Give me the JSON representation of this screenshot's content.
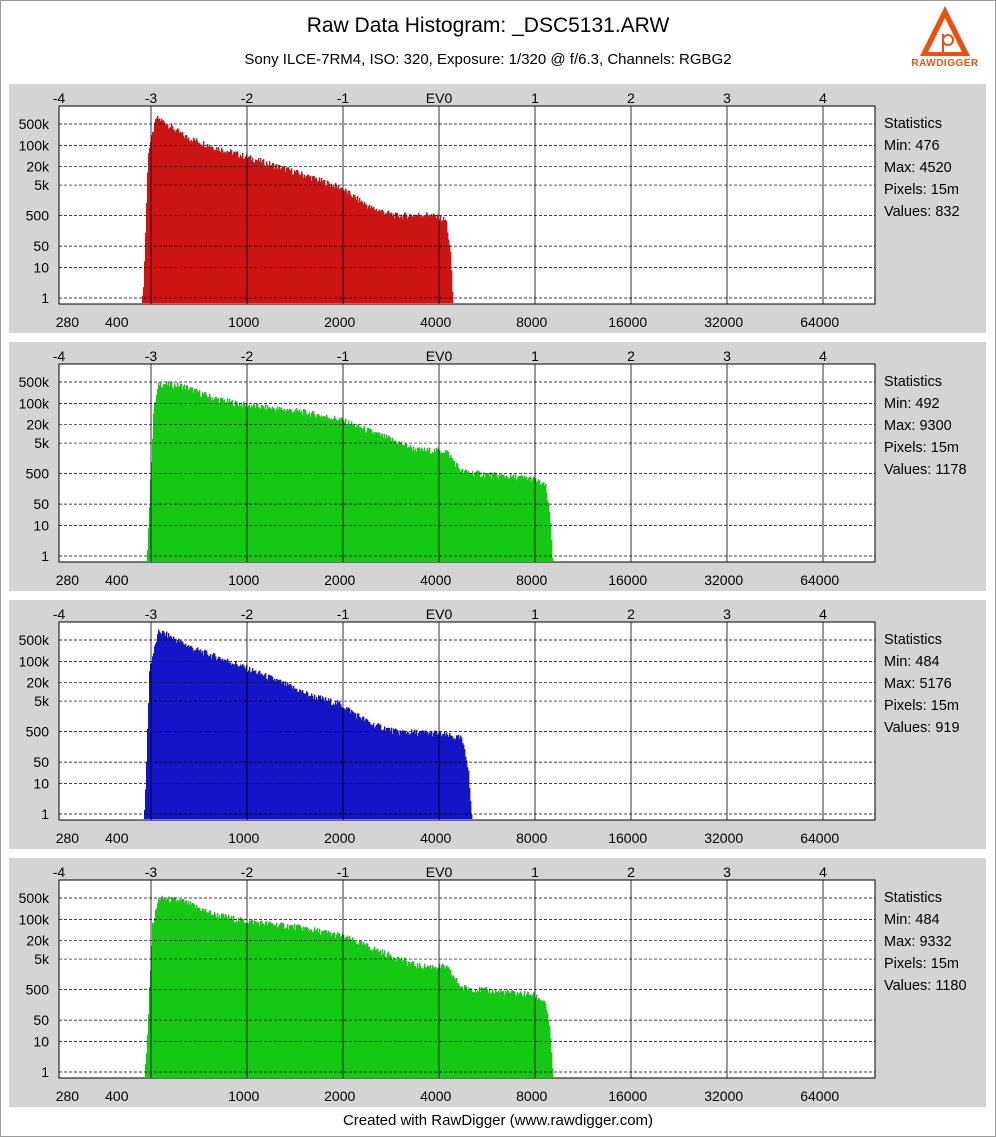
{
  "header": {
    "title": "Raw Data Histogram: _DSC5131.ARW",
    "subtitle": "Sony ILCE-7RM4, ISO: 320, Exposure: 1/320 @ f/6.3, Channels: RGBG2"
  },
  "logo": {
    "text": "RAWDIGGER",
    "icon": "rawdigger-logo-icon"
  },
  "footer": {
    "text": "Created with RawDigger (www.rawdigger.com)"
  },
  "stats_labels": {
    "heading": "Statistics",
    "min": "Min: ",
    "max": "Max: ",
    "pixels": "Pixels: ",
    "values": "Values: "
  },
  "colors": {
    "panel_bg": "#d4d4d4",
    "grid": "#000000"
  },
  "chart_data": [
    {
      "type": "bar",
      "channel": "R",
      "color": "#cc1414",
      "x_ticks_bottom": [
        "280",
        "400",
        "1000",
        "2000",
        "4000",
        "8000",
        "16000",
        "32000",
        "64000"
      ],
      "x_ticks_top": [
        "-4",
        "-3",
        "-2",
        "-1",
        "EV0",
        "1",
        "2",
        "3",
        "4"
      ],
      "y_ticks": [
        "500k",
        "100k",
        "20k",
        "5k",
        "500",
        "50",
        "10",
        "1"
      ],
      "x_scale": "log2",
      "y_scale": "log",
      "grid": true,
      "profile": [
        [
          476,
          0.3
        ],
        [
          485,
          5
        ],
        [
          500,
          60000
        ],
        [
          530,
          800000
        ],
        [
          560,
          600000
        ],
        [
          650,
          200000
        ],
        [
          800,
          90000
        ],
        [
          1000,
          45000
        ],
        [
          1500,
          12000
        ],
        [
          2000,
          4200
        ],
        [
          2500,
          900
        ],
        [
          3000,
          500
        ],
        [
          3800,
          550
        ],
        [
          4300,
          350
        ],
        [
          4450,
          20
        ],
        [
          4520,
          0.5
        ]
      ],
      "stats": {
        "min": "476",
        "max": "4520",
        "pixels": "15m",
        "values": "832"
      }
    },
    {
      "type": "bar",
      "channel": "G",
      "color": "#14c814",
      "x_ticks_bottom": [
        "280",
        "400",
        "1000",
        "2000",
        "4000",
        "8000",
        "16000",
        "32000",
        "64000"
      ],
      "x_ticks_top": [
        "-4",
        "-3",
        "-2",
        "-1",
        "EV0",
        "1",
        "2",
        "3",
        "4"
      ],
      "y_ticks": [
        "500k",
        "100k",
        "20k",
        "5k",
        "500",
        "50",
        "10",
        "1"
      ],
      "x_scale": "log2",
      "y_scale": "log",
      "grid": true,
      "profile": [
        [
          492,
          0.3
        ],
        [
          500,
          5
        ],
        [
          520,
          60000
        ],
        [
          540,
          450000
        ],
        [
          640,
          380000
        ],
        [
          800,
          150000
        ],
        [
          1000,
          90000
        ],
        [
          1500,
          55000
        ],
        [
          2000,
          30000
        ],
        [
          2500,
          12000
        ],
        [
          3500,
          3000
        ],
        [
          4300,
          2800
        ],
        [
          4800,
          600
        ],
        [
          6000,
          450
        ],
        [
          8000,
          350
        ],
        [
          8800,
          200
        ],
        [
          9100,
          20
        ],
        [
          9300,
          0.5
        ]
      ],
      "stats": {
        "min": "492",
        "max": "9300",
        "pixels": "15m",
        "values": "1178"
      }
    },
    {
      "type": "bar",
      "channel": "B",
      "color": "#1414c8",
      "x_ticks_bottom": [
        "280",
        "400",
        "1000",
        "2000",
        "4000",
        "8000",
        "16000",
        "32000",
        "64000"
      ],
      "x_ticks_top": [
        "-4",
        "-3",
        "-2",
        "-1",
        "EV0",
        "1",
        "2",
        "3",
        "4"
      ],
      "y_ticks": [
        "500k",
        "100k",
        "20k",
        "5k",
        "500",
        "50",
        "10",
        "1"
      ],
      "x_scale": "log2",
      "y_scale": "log",
      "grid": true,
      "profile": [
        [
          484,
          0.3
        ],
        [
          490,
          5
        ],
        [
          505,
          60000
        ],
        [
          540,
          1000000
        ],
        [
          580,
          700000
        ],
        [
          700,
          250000
        ],
        [
          900,
          100000
        ],
        [
          1200,
          30000
        ],
        [
          1600,
          8000
        ],
        [
          2000,
          4000
        ],
        [
          2500,
          900
        ],
        [
          3000,
          500
        ],
        [
          4000,
          450
        ],
        [
          4800,
          300
        ],
        [
          5050,
          30
        ],
        [
          5176,
          0.5
        ]
      ],
      "stats": {
        "min": "484",
        "max": "5176",
        "pixels": "15m",
        "values": "919"
      }
    },
    {
      "type": "bar",
      "channel": "G2",
      "color": "#14c814",
      "x_ticks_bottom": [
        "280",
        "400",
        "1000",
        "2000",
        "4000",
        "8000",
        "16000",
        "32000",
        "64000"
      ],
      "x_ticks_top": [
        "-4",
        "-3",
        "-2",
        "-1",
        "EV0",
        "1",
        "2",
        "3",
        "4"
      ],
      "y_ticks": [
        "500k",
        "100k",
        "20k",
        "5k",
        "500",
        "50",
        "10",
        "1"
      ],
      "x_scale": "log2",
      "y_scale": "log",
      "grid": true,
      "profile": [
        [
          484,
          0.3
        ],
        [
          495,
          5
        ],
        [
          515,
          60000
        ],
        [
          540,
          500000
        ],
        [
          640,
          400000
        ],
        [
          800,
          150000
        ],
        [
          1000,
          90000
        ],
        [
          1500,
          55000
        ],
        [
          2000,
          30000
        ],
        [
          2500,
          12000
        ],
        [
          3500,
          3000
        ],
        [
          4300,
          2800
        ],
        [
          4800,
          600
        ],
        [
          6000,
          450
        ],
        [
          8000,
          350
        ],
        [
          8800,
          200
        ],
        [
          9100,
          20
        ],
        [
          9332,
          0.5
        ]
      ],
      "stats": {
        "min": "484",
        "max": "9332",
        "pixels": "15m",
        "values": "1180"
      }
    }
  ]
}
